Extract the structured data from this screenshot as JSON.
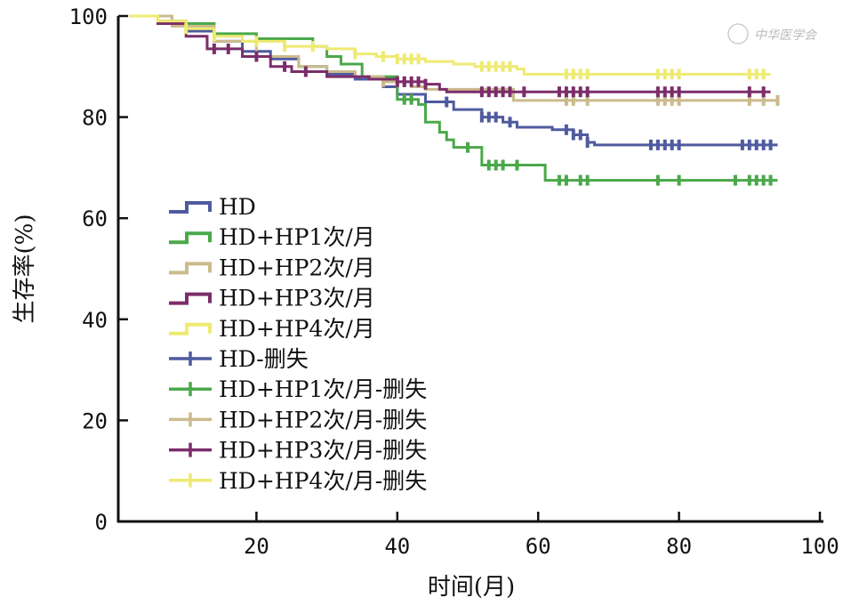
{
  "chart_data": {
    "type": "line",
    "subtype": "kaplan-meier step",
    "xlabel": "时间(月)",
    "ylabel": "生存率(%)",
    "xlim": [
      0,
      100
    ],
    "ylim": [
      0,
      100
    ],
    "xticks": [
      0,
      20,
      40,
      60,
      80,
      100
    ],
    "yticks": [
      0,
      20,
      40,
      60,
      80,
      100
    ],
    "grid": false,
    "legend_placement": "center-left",
    "watermark": "中华医学会",
    "series": [
      {
        "name": "HD",
        "censor_name": "HD-删失",
        "color": "#4f5a9f",
        "points": [
          [
            2,
            100
          ],
          [
            6,
            99
          ],
          [
            10,
            97
          ],
          [
            14,
            95
          ],
          [
            18,
            93
          ],
          [
            22,
            91.5
          ],
          [
            26,
            90
          ],
          [
            30,
            88.5
          ],
          [
            34,
            87.5
          ],
          [
            38,
            86
          ],
          [
            40,
            84.5
          ],
          [
            44,
            83
          ],
          [
            48,
            81.5
          ],
          [
            52,
            80
          ],
          [
            55,
            79
          ],
          [
            57,
            78
          ],
          [
            62,
            77.5
          ],
          [
            65,
            76.5
          ],
          [
            67,
            75
          ],
          [
            68,
            74.5
          ],
          [
            94,
            74.5
          ]
        ],
        "censored": [
          47,
          52,
          53,
          54,
          56,
          64,
          65,
          66,
          67,
          76,
          77,
          78,
          79,
          80,
          89,
          90,
          91,
          92,
          93
        ]
      },
      {
        "name": "HD+HP1次/月",
        "censor_name": "HD+HP1次/月-删失",
        "color": "#4aa84a",
        "points": [
          [
            2,
            100
          ],
          [
            8,
            98.5
          ],
          [
            14,
            96.5
          ],
          [
            20,
            95.5
          ],
          [
            28,
            94
          ],
          [
            30,
            92
          ],
          [
            32,
            90.5
          ],
          [
            35,
            88
          ],
          [
            40,
            83.5
          ],
          [
            43,
            82.5
          ],
          [
            44,
            79
          ],
          [
            46,
            77
          ],
          [
            47,
            75.5
          ],
          [
            48,
            74
          ],
          [
            51,
            74
          ],
          [
            52,
            70.5
          ],
          [
            60,
            70.5
          ],
          [
            61,
            67.5
          ],
          [
            94,
            67.5
          ]
        ],
        "censored": [
          41,
          42,
          50,
          53,
          54,
          55,
          57,
          63,
          64,
          66,
          67,
          77,
          80,
          88,
          90,
          91,
          92,
          93
        ]
      },
      {
        "name": "HD+HP2次/月",
        "censor_name": "HD+HP2次/月-删失",
        "color": "#cbbb8c",
        "points": [
          [
            2,
            100
          ],
          [
            8,
            98
          ],
          [
            14,
            95
          ],
          [
            20,
            92
          ],
          [
            26,
            90
          ],
          [
            30,
            89
          ],
          [
            34,
            88
          ],
          [
            38,
            87
          ],
          [
            42,
            86
          ],
          [
            44,
            85.5
          ],
          [
            56,
            85.5
          ],
          [
            56.5,
            83.3
          ],
          [
            94,
            83.3
          ]
        ],
        "censored": [
          38,
          40,
          41,
          64,
          65,
          67,
          77,
          78,
          79,
          80,
          90,
          92,
          94
        ]
      },
      {
        "name": "HD+HP3次/月",
        "censor_name": "HD+HP3次/月-删失",
        "color": "#7b2d6b",
        "points": [
          [
            2,
            100
          ],
          [
            6,
            98.5
          ],
          [
            10,
            96
          ],
          [
            13,
            93.5
          ],
          [
            18,
            92
          ],
          [
            22,
            90
          ],
          [
            25,
            89
          ],
          [
            30,
            88
          ],
          [
            36,
            87.5
          ],
          [
            40,
            87
          ],
          [
            44,
            86.5
          ],
          [
            46,
            85.5
          ],
          [
            47,
            85
          ],
          [
            93,
            85
          ]
        ],
        "censored": [
          14,
          16,
          20,
          24,
          27,
          40,
          41,
          42,
          43,
          44,
          52,
          53,
          54,
          55,
          56,
          58,
          63,
          64,
          65,
          66,
          67,
          77,
          78,
          79,
          80,
          90,
          92
        ]
      },
      {
        "name": "HD+HP4次/月",
        "censor_name": "HD+HP4次/月-删失",
        "color": "#eeea72",
        "points": [
          [
            2,
            100
          ],
          [
            6,
            99
          ],
          [
            10,
            97.5
          ],
          [
            14,
            96
          ],
          [
            18,
            95
          ],
          [
            24,
            94
          ],
          [
            30,
            93.5
          ],
          [
            34,
            92.5
          ],
          [
            37,
            92
          ],
          [
            40,
            91.5
          ],
          [
            44,
            91
          ],
          [
            48,
            90.5
          ],
          [
            51,
            90
          ],
          [
            57,
            89.5
          ],
          [
            58,
            88.5
          ],
          [
            93,
            88.5
          ]
        ],
        "censored": [
          10,
          14,
          20,
          24,
          28,
          34,
          38,
          40,
          41,
          42,
          43,
          52,
          53,
          54,
          55,
          56,
          64,
          65,
          66,
          67,
          77,
          78,
          79,
          80,
          90,
          91,
          92
        ]
      }
    ]
  }
}
